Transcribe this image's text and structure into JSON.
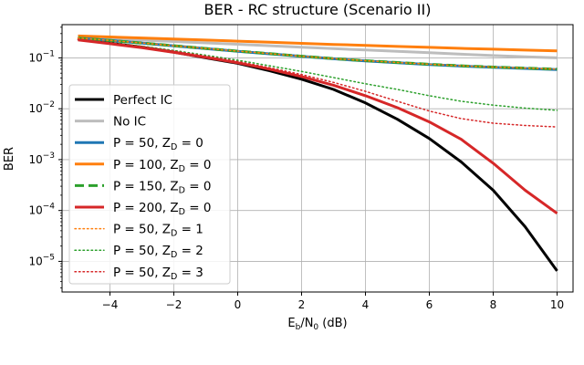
{
  "chart_data": {
    "type": "line",
    "title": "BER - RC structure (Scenario II)",
    "xlabel": "E_b/N_0 (dB)",
    "ylabel": "BER",
    "xlim": [
      -5.5,
      10.5
    ],
    "ylim": [
      2.5e-06,
      0.45
    ],
    "yscale": "log",
    "grid": true,
    "legend_position": "lower-left",
    "x_ticks": [
      -4,
      -2,
      0,
      2,
      4,
      6,
      8,
      10
    ],
    "y_ticks": [
      1e-05,
      0.0001,
      0.001,
      0.01,
      0.1
    ],
    "x": [
      -5,
      -4,
      -3,
      -2,
      -1,
      0,
      1,
      2,
      3,
      4,
      5,
      6,
      7,
      8,
      9,
      10
    ],
    "series": [
      {
        "name": "Perfect IC",
        "color": "#000000",
        "style": "solid",
        "width": 3,
        "values": [
          0.23,
          0.195,
          0.162,
          0.13,
          0.1,
          0.078,
          0.056,
          0.038,
          0.024,
          0.013,
          0.0062,
          0.0026,
          0.0009,
          0.00025,
          4.8e-05,
          6.5e-06
        ]
      },
      {
        "name": "No IC",
        "color": "#bdbdbd",
        "style": "solid",
        "width": 3,
        "values": [
          0.25,
          0.237,
          0.223,
          0.21,
          0.197,
          0.185,
          0.173,
          0.162,
          0.152,
          0.143,
          0.134,
          0.126,
          0.118,
          0.111,
          0.105,
          0.1
        ]
      },
      {
        "name": "P = 50, Z_D = 0",
        "color": "#1f77b4",
        "style": "solid",
        "width": 3,
        "values": [
          0.245,
          0.22,
          0.195,
          0.172,
          0.152,
          0.135,
          0.12,
          0.107,
          0.096,
          0.087,
          0.08,
          0.074,
          0.069,
          0.065,
          0.062,
          0.059
        ]
      },
      {
        "name": "P = 100, Z_D = 0",
        "color": "#ff7f0e",
        "style": "solid",
        "width": 3,
        "values": [
          0.27,
          0.258,
          0.246,
          0.235,
          0.224,
          0.213,
          0.203,
          0.193,
          0.184,
          0.176,
          0.168,
          0.161,
          0.154,
          0.148,
          0.142,
          0.137
        ]
      },
      {
        "name": "P = 150, Z_D = 0",
        "color": "#2ca02c",
        "style": "dashed",
        "width": 3,
        "values": [
          0.245,
          0.22,
          0.196,
          0.173,
          0.153,
          0.136,
          0.121,
          0.108,
          0.097,
          0.088,
          0.081,
          0.075,
          0.07,
          0.066,
          0.063,
          0.06
        ]
      },
      {
        "name": "P = 200, Z_D = 0",
        "color": "#d62728",
        "style": "solid",
        "width": 3,
        "values": [
          0.225,
          0.19,
          0.158,
          0.128,
          0.102,
          0.08,
          0.06,
          0.043,
          0.029,
          0.018,
          0.0105,
          0.0055,
          0.0025,
          0.00085,
          0.00025,
          8.8e-05
        ]
      },
      {
        "name": "P = 50, Z_D = 1",
        "color": "#ff7f0e",
        "style": "dotted",
        "width": 1.5,
        "values": [
          0.245,
          0.22,
          0.196,
          0.173,
          0.153,
          0.136,
          0.121,
          0.108,
          0.097,
          0.088,
          0.081,
          0.075,
          0.07,
          0.066,
          0.063,
          0.06
        ]
      },
      {
        "name": "P = 50, Z_D = 2",
        "color": "#2ca02c",
        "style": "dotted",
        "width": 1.5,
        "values": [
          0.23,
          0.2,
          0.17,
          0.14,
          0.113,
          0.09,
          0.07,
          0.054,
          0.041,
          0.031,
          0.024,
          0.018,
          0.014,
          0.0118,
          0.0103,
          0.0093
        ]
      },
      {
        "name": "P = 50, Z_D = 3",
        "color": "#d62728",
        "style": "dotted",
        "width": 1.5,
        "values": [
          0.23,
          0.198,
          0.166,
          0.136,
          0.108,
          0.085,
          0.064,
          0.047,
          0.033,
          0.022,
          0.014,
          0.009,
          0.0064,
          0.0052,
          0.0047,
          0.0044
        ]
      }
    ],
    "legend": [
      {
        "main": "Perfect IC",
        "sub": "",
        "rest": ""
      },
      {
        "main": "No IC",
        "sub": "",
        "rest": ""
      },
      {
        "main": "P = 50, Z",
        "sub": "D",
        "rest": " = 0"
      },
      {
        "main": "P = 100, Z",
        "sub": "D",
        "rest": " = 0"
      },
      {
        "main": "P = 150, Z",
        "sub": "D",
        "rest": " = 0"
      },
      {
        "main": "P = 200, Z",
        "sub": "D",
        "rest": " = 0"
      },
      {
        "main": "P = 50, Z",
        "sub": "D",
        "rest": " = 1"
      },
      {
        "main": "P = 50, Z",
        "sub": "D",
        "rest": " = 2"
      },
      {
        "main": "P = 50, Z",
        "sub": "D",
        "rest": " = 3"
      }
    ],
    "xlabel_parts": {
      "e": "E",
      "e_sub": "b",
      "slash": "/N",
      "n_sub": "0",
      "unit": " (dB)"
    }
  }
}
